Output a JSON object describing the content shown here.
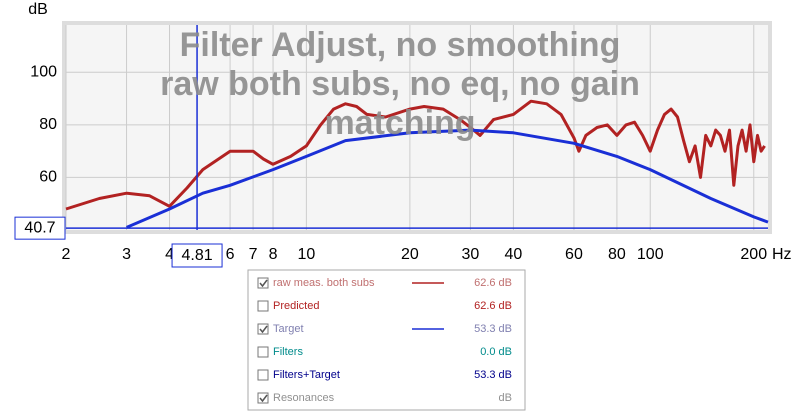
{
  "chart_data": {
    "type": "line",
    "title": [
      "Filter Adjust, no smoothing",
      "raw both subs, no eq, no gain",
      "matching"
    ],
    "y_label": "dB",
    "x_label": "Hz",
    "xscale": "log",
    "xlim": [
      2,
      220
    ],
    "ylim": [
      40,
      118
    ],
    "xticks": [
      2,
      3,
      4,
      6,
      7,
      8,
      10,
      20,
      30,
      40,
      60,
      80,
      100,
      200
    ],
    "yticks": [
      60,
      80,
      100
    ],
    "grid": true,
    "series": [
      {
        "color": "#b22222",
        "x": [
          2,
          2.5,
          3,
          3.5,
          4,
          4.5,
          5,
          6,
          7,
          7.5,
          8,
          9,
          10,
          11,
          12,
          13,
          14,
          15,
          17,
          20,
          22,
          25,
          28,
          30,
          32,
          35,
          40,
          45,
          50,
          55,
          60,
          62,
          65,
          70,
          75,
          80,
          85,
          90,
          95,
          100,
          105,
          110,
          115,
          120,
          125,
          130,
          135,
          140,
          145,
          150,
          155,
          160,
          165,
          170,
          175,
          180,
          185,
          190,
          195,
          200,
          205,
          210,
          215
        ],
        "values": [
          48,
          52,
          54,
          53,
          49,
          56,
          63,
          70,
          70,
          67,
          65,
          68,
          72,
          80,
          86,
          88,
          87,
          84,
          83,
          86,
          87,
          86,
          82,
          79,
          76,
          82,
          84,
          89,
          88,
          84,
          75,
          70,
          76,
          79,
          80,
          76,
          80,
          81,
          76,
          70,
          78,
          84,
          86,
          83,
          74,
          66,
          72,
          60,
          76,
          72,
          78,
          76,
          70,
          78,
          57,
          72,
          78,
          70,
          80,
          66,
          76,
          70,
          72
        ]
      },
      {
        "color": "#1a2fd6",
        "x": [
          3,
          4,
          5,
          6,
          8,
          10,
          13,
          20,
          30,
          40,
          60,
          80,
          100,
          150,
          200,
          220
        ],
        "values": [
          41,
          48,
          54,
          57,
          63,
          68,
          74,
          77,
          78,
          77,
          73,
          68,
          63,
          52,
          45,
          43
        ]
      }
    ],
    "cursor": {
      "x": 4.81,
      "y": 40.7,
      "color": "#1a2fd6"
    }
  },
  "legend_panel": {
    "rows": [
      {
        "label": "raw meas. both subs",
        "readout": "62.6 dB",
        "checked": true,
        "text_color": "#c07070",
        "line_color": "#b22222"
      },
      {
        "label": "Predicted",
        "readout": "62.6 dB",
        "checked": false,
        "text_color": "#b22222"
      },
      {
        "label": "Target",
        "readout": "53.3 dB",
        "checked": true,
        "text_color": "#8080b0",
        "line_color": "#1a2fd6"
      },
      {
        "label": "Filters",
        "readout": "0.0 dB",
        "checked": false,
        "text_color": "#008b8b"
      },
      {
        "label": "Filters+Target",
        "readout": "53.3 dB",
        "checked": false,
        "text_color": "#00008b"
      },
      {
        "label": "Resonances",
        "readout": "dB",
        "checked": true,
        "text_color": "#909090"
      }
    ]
  }
}
